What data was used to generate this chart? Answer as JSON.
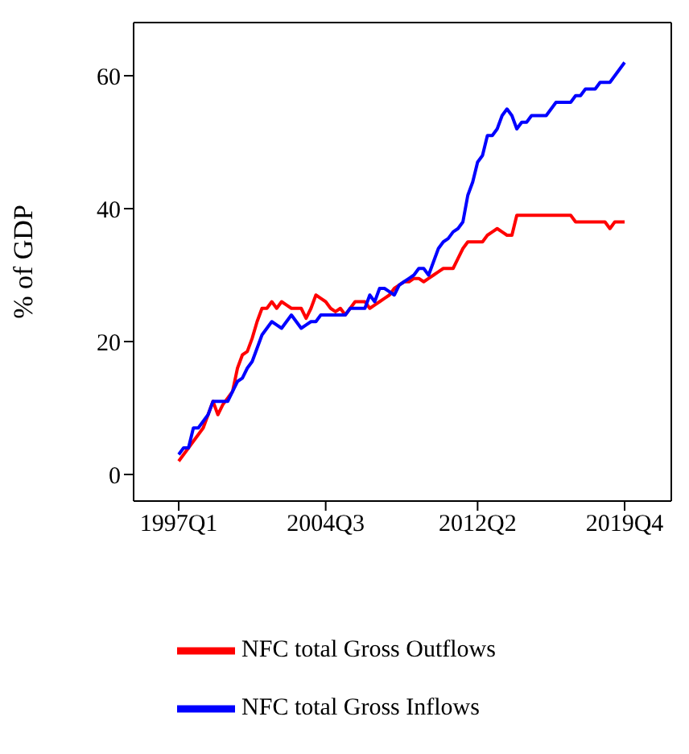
{
  "chart_data": {
    "type": "line",
    "ylabel": "% of GDP",
    "categories": [
      "1997Q1",
      null,
      null,
      null,
      null,
      null,
      null,
      null,
      null,
      null,
      null,
      null,
      null,
      null,
      null,
      null,
      null,
      null,
      null,
      null,
      null,
      null,
      null,
      null,
      null,
      null,
      null,
      null,
      null,
      null,
      "2004Q3",
      null,
      null,
      null,
      null,
      null,
      null,
      null,
      null,
      null,
      null,
      null,
      null,
      null,
      null,
      null,
      null,
      null,
      null,
      null,
      null,
      null,
      null,
      null,
      null,
      null,
      null,
      null,
      null,
      null,
      null,
      "2012Q2",
      null,
      null,
      null,
      null,
      null,
      null,
      null,
      null,
      null,
      null,
      null,
      null,
      null,
      null,
      null,
      null,
      null,
      null,
      null,
      null,
      null,
      null,
      null,
      null,
      null,
      null,
      null,
      null,
      null,
      "2019Q4"
    ],
    "ylim": [
      -4,
      68
    ],
    "yticks": [
      0,
      20,
      40,
      60
    ],
    "grid": false,
    "legend": "bottom",
    "marker": "none",
    "line_style": "solid",
    "series": [
      {
        "name": "NFC total Gross Outflows",
        "color": "#ff0000",
        "values": [
          2,
          3,
          4,
          5,
          6,
          7,
          9,
          11,
          9,
          10.5,
          11.5,
          12.5,
          16,
          18,
          18.5,
          20.5,
          23,
          25,
          25,
          26,
          25,
          26,
          25.5,
          25,
          25,
          25,
          23.5,
          25,
          27,
          26.5,
          26,
          25,
          24.5,
          25,
          24,
          25,
          26,
          26,
          26,
          25,
          25.5,
          26,
          26.5,
          27,
          28,
          28.5,
          29,
          29,
          29.5,
          29.5,
          29,
          29.5,
          30,
          30.5,
          31,
          31,
          31,
          32.5,
          34,
          35,
          35,
          35,
          35,
          36,
          36.5,
          37,
          36.5,
          36,
          36,
          39,
          39,
          39,
          39,
          39,
          39,
          39,
          39,
          39,
          39,
          39,
          39,
          38,
          38,
          38,
          38,
          38,
          38,
          38,
          37,
          38,
          38,
          38
        ]
      },
      {
        "name": "NFC total Gross Inflows",
        "color": "#0000ff",
        "values": [
          3,
          4,
          4,
          7,
          7,
          8,
          9,
          11,
          11,
          11,
          11,
          12.5,
          14,
          14.5,
          16,
          17,
          19,
          21,
          22,
          23,
          22.5,
          22,
          23,
          24,
          23,
          22,
          22.5,
          23,
          23,
          24,
          24,
          24,
          24,
          24,
          24,
          25,
          25,
          25,
          25,
          27,
          26,
          28,
          28,
          27.5,
          27,
          28.5,
          29,
          29.5,
          30,
          31,
          31,
          30,
          32,
          34,
          35,
          35.5,
          36.5,
          37,
          38,
          42,
          44,
          47,
          48,
          51,
          51,
          52,
          54,
          55,
          54,
          52,
          53,
          53,
          54,
          54,
          54,
          54,
          55,
          56,
          56,
          56,
          56,
          57,
          57,
          58,
          58,
          58,
          59,
          59,
          59,
          60,
          61,
          62
        ]
      }
    ]
  }
}
